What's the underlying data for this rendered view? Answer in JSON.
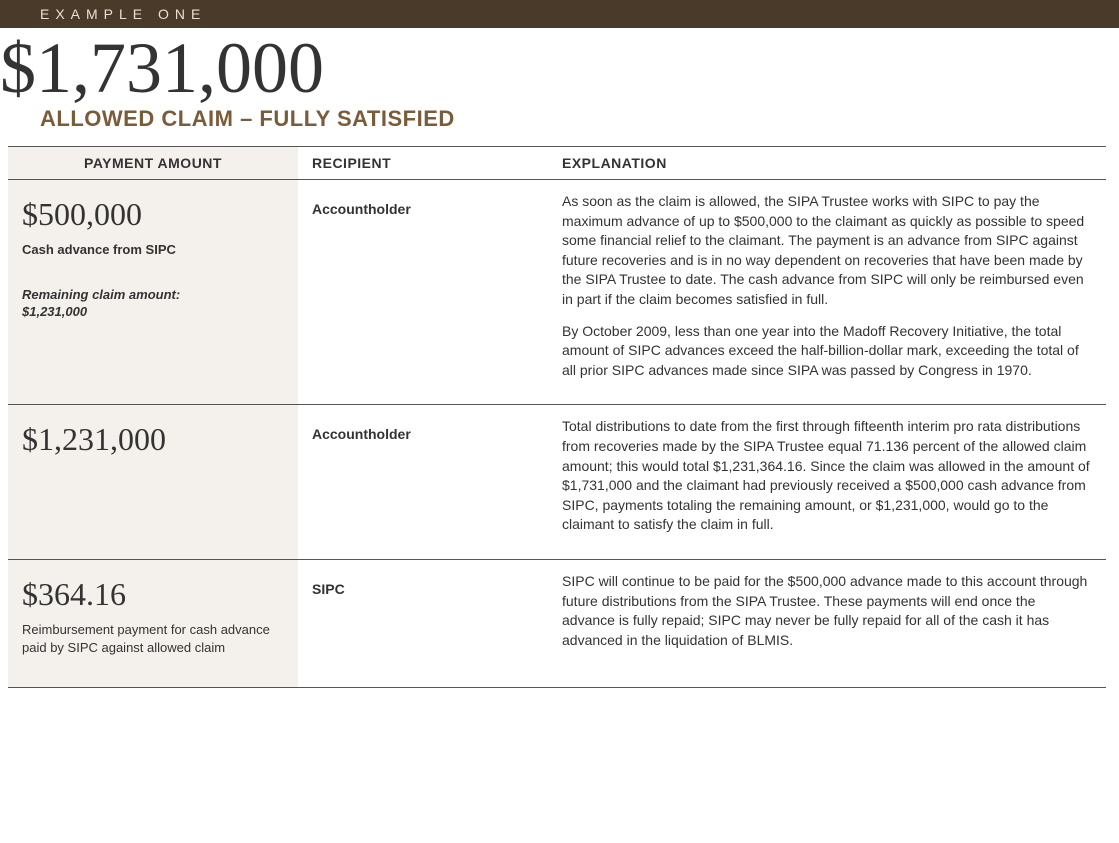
{
  "header": {
    "label": "EXAMPLE ONE",
    "bg_color": "#4a3a2a",
    "text_color": "#e8e0d5"
  },
  "title": {
    "amount": "$1,731,000",
    "subtitle": "ALLOWED CLAIM – FULLY SATISFIED",
    "subtitle_color": "#7a5c3a"
  },
  "columns": {
    "col1": "PAYMENT AMOUNT",
    "col2": "RECIPIENT",
    "col3": "EXPLANATION",
    "col1_bg": "#f4f0eb"
  },
  "rows": [
    {
      "amount": "$500,000",
      "amount_sub": "Cash advance from SIPC",
      "remaining_label": "Remaining claim amount:",
      "remaining_value": "$1,231,000",
      "recipient": "Accountholder",
      "explanation": [
        "As soon as the claim is allowed, the SIPA Trustee works with SIPC to pay the maximum advance of up to $500,000 to the claimant as quickly as possible to speed some financial relief to the claimant. The payment is an advance from SIPC against future recoveries and is in no way dependent on recoveries that have been made by the SIPA Trustee to date. The cash advance from SIPC will only be reimbursed even in part if the claim becomes satisfied in full.",
        "By October 2009, less than one year into the Madoff Recovery Initiative, the total amount of SIPC advances exceed the half-billion-dollar mark, exceeding the total of all prior SIPC advances made since SIPA was passed by Congress in 1970."
      ]
    },
    {
      "amount": "$1,231,000",
      "amount_sub": "",
      "remaining_label": "",
      "remaining_value": "",
      "recipient": "Accountholder",
      "explanation": [
        "Total distributions to date from the first through fifteenth interim pro rata distributions from recoveries made by the SIPA Trustee equal 71.136 percent of the allowed claim amount; this would total $1,231,364.16. Since the claim was allowed in the amount of $1,731,000 and the claimant had previously received a $500,000 cash advance from SIPC, payments totaling the remaining amount, or $1,231,000, would go to the claimant to satisfy the claim in full."
      ]
    },
    {
      "amount": "$364.16",
      "amount_sub": "Reimbursement payment for cash advance paid by SIPC against allowed claim",
      "remaining_label": "",
      "remaining_value": "",
      "recipient": "SIPC",
      "explanation": [
        "SIPC will continue to be paid for the $500,000 advance made to this account through future distributions from the SIPA Trustee. These payments will end once the advance is fully repaid; SIPC may never be fully repaid for all of the cash it has advanced in the liquidation of BLMIS."
      ]
    }
  ]
}
